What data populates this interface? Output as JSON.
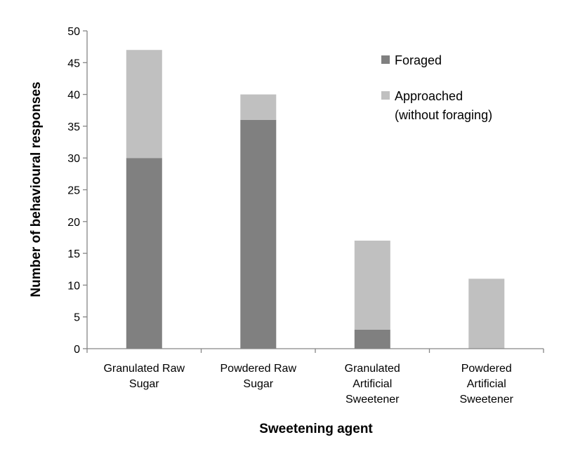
{
  "chart_data": {
    "type": "bar",
    "stacked": true,
    "categories": [
      [
        "Granulated Raw",
        "Sugar"
      ],
      [
        "Powdered Raw",
        "Sugar"
      ],
      [
        "Granulated",
        "Artificial",
        "Sweetener"
      ],
      [
        "Powdered",
        "Artificial",
        "Sweetener"
      ]
    ],
    "series": [
      {
        "name": "Foraged",
        "values": [
          30,
          36,
          3,
          0
        ],
        "color": "#808080"
      },
      {
        "name": "Approached (without foraging)",
        "legend_lines": [
          "Approached",
          "(without foraging)"
        ],
        "values": [
          17,
          4,
          14,
          11
        ],
        "color": "#c0c0c0"
      }
    ],
    "xlabel": "Sweetening agent",
    "ylabel": "Number of behavioural responses",
    "ylim": [
      0,
      50
    ],
    "yticks": [
      0,
      5,
      10,
      15,
      20,
      25,
      30,
      35,
      40,
      45,
      50
    ],
    "grid": false,
    "legend_position": "top-right"
  }
}
